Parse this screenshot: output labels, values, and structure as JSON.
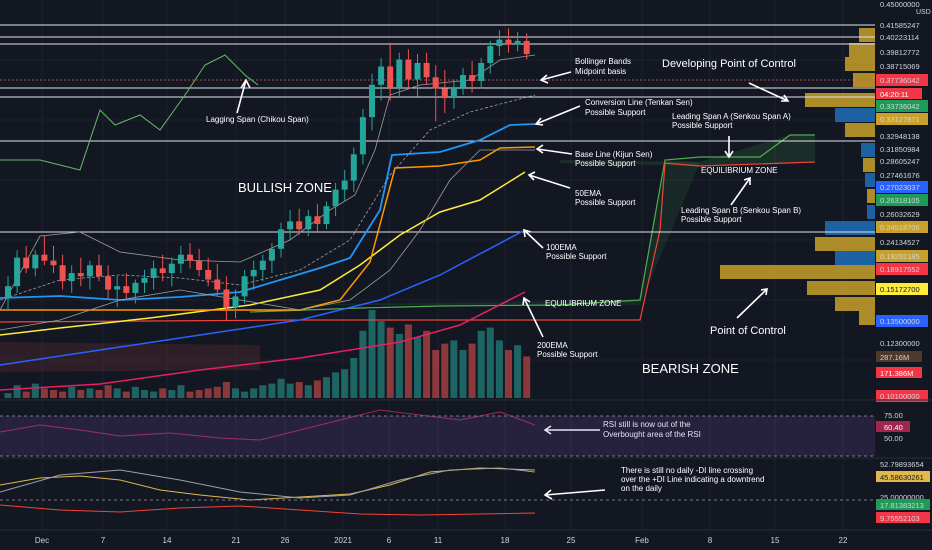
{
  "chart_data": {
    "type": "candlestick",
    "currency": "USD",
    "price_axis": {
      "scale": "log",
      "range": [
        0.098,
        0.46
      ],
      "ticks": [
        "0.45000000",
        "0.41585247",
        "0.40223114",
        "0.39812772",
        "0.38715069",
        "0.37736042",
        "0.35000000",
        "0.33736042",
        "0.33127871",
        "0.32948138",
        "0.31850984",
        "0.28605247",
        "0.27461676",
        "0.27023037",
        "0.26318105",
        "0.26032629",
        "0.24518706",
        "0.24134527",
        "0.19292185",
        "0.18917552",
        "0.15172700",
        "0.13500000",
        "0.12300000",
        "0.10100000"
      ]
    },
    "current_price_countdown": "04:20:11",
    "volume_labels": [
      "287.16M",
      "171.386M"
    ],
    "x_axis_labels": [
      "Dec",
      "7",
      "14",
      "21",
      "26",
      "2021",
      "6",
      "11",
      "18",
      "25",
      "Feb",
      "8",
      "15",
      "22"
    ],
    "candles": [
      {
        "o": 0.145,
        "h": 0.158,
        "l": 0.138,
        "c": 0.152
      },
      {
        "o": 0.152,
        "h": 0.175,
        "l": 0.148,
        "c": 0.17
      },
      {
        "o": 0.17,
        "h": 0.178,
        "l": 0.16,
        "c": 0.163
      },
      {
        "o": 0.163,
        "h": 0.175,
        "l": 0.158,
        "c": 0.172
      },
      {
        "o": 0.172,
        "h": 0.185,
        "l": 0.165,
        "c": 0.168
      },
      {
        "o": 0.168,
        "h": 0.178,
        "l": 0.16,
        "c": 0.165
      },
      {
        "o": 0.165,
        "h": 0.172,
        "l": 0.15,
        "c": 0.155
      },
      {
        "o": 0.155,
        "h": 0.165,
        "l": 0.148,
        "c": 0.16
      },
      {
        "o": 0.16,
        "h": 0.17,
        "l": 0.152,
        "c": 0.158
      },
      {
        "o": 0.158,
        "h": 0.168,
        "l": 0.15,
        "c": 0.165
      },
      {
        "o": 0.165,
        "h": 0.172,
        "l": 0.155,
        "c": 0.158
      },
      {
        "o": 0.158,
        "h": 0.165,
        "l": 0.145,
        "c": 0.15
      },
      {
        "o": 0.15,
        "h": 0.158,
        "l": 0.14,
        "c": 0.152
      },
      {
        "o": 0.152,
        "h": 0.16,
        "l": 0.145,
        "c": 0.148
      },
      {
        "o": 0.148,
        "h": 0.156,
        "l": 0.142,
        "c": 0.154
      },
      {
        "o": 0.154,
        "h": 0.162,
        "l": 0.148,
        "c": 0.157
      },
      {
        "o": 0.157,
        "h": 0.168,
        "l": 0.15,
        "c": 0.163
      },
      {
        "o": 0.163,
        "h": 0.172,
        "l": 0.155,
        "c": 0.16
      },
      {
        "o": 0.16,
        "h": 0.17,
        "l": 0.152,
        "c": 0.166
      },
      {
        "o": 0.166,
        "h": 0.178,
        "l": 0.16,
        "c": 0.172
      },
      {
        "o": 0.172,
        "h": 0.18,
        "l": 0.163,
        "c": 0.168
      },
      {
        "o": 0.168,
        "h": 0.176,
        "l": 0.158,
        "c": 0.162
      },
      {
        "o": 0.162,
        "h": 0.17,
        "l": 0.152,
        "c": 0.156
      },
      {
        "o": 0.156,
        "h": 0.166,
        "l": 0.146,
        "c": 0.15
      },
      {
        "o": 0.15,
        "h": 0.158,
        "l": 0.133,
        "c": 0.14
      },
      {
        "o": 0.14,
        "h": 0.15,
        "l": 0.134,
        "c": 0.146
      },
      {
        "o": 0.146,
        "h": 0.162,
        "l": 0.142,
        "c": 0.158
      },
      {
        "o": 0.158,
        "h": 0.168,
        "l": 0.15,
        "c": 0.162
      },
      {
        "o": 0.162,
        "h": 0.172,
        "l": 0.155,
        "c": 0.168
      },
      {
        "o": 0.168,
        "h": 0.18,
        "l": 0.16,
        "c": 0.176
      },
      {
        "o": 0.176,
        "h": 0.195,
        "l": 0.17,
        "c": 0.19
      },
      {
        "o": 0.19,
        "h": 0.205,
        "l": 0.182,
        "c": 0.196
      },
      {
        "o": 0.196,
        "h": 0.206,
        "l": 0.186,
        "c": 0.19
      },
      {
        "o": 0.19,
        "h": 0.205,
        "l": 0.185,
        "c": 0.2
      },
      {
        "o": 0.2,
        "h": 0.21,
        "l": 0.188,
        "c": 0.194
      },
      {
        "o": 0.194,
        "h": 0.212,
        "l": 0.19,
        "c": 0.208
      },
      {
        "o": 0.208,
        "h": 0.228,
        "l": 0.2,
        "c": 0.222
      },
      {
        "o": 0.222,
        "h": 0.24,
        "l": 0.212,
        "c": 0.23
      },
      {
        "o": 0.23,
        "h": 0.262,
        "l": 0.22,
        "c": 0.255
      },
      {
        "o": 0.255,
        "h": 0.305,
        "l": 0.245,
        "c": 0.295
      },
      {
        "o": 0.295,
        "h": 0.35,
        "l": 0.28,
        "c": 0.335
      },
      {
        "o": 0.335,
        "h": 0.372,
        "l": 0.315,
        "c": 0.36
      },
      {
        "o": 0.36,
        "h": 0.395,
        "l": 0.315,
        "c": 0.332
      },
      {
        "o": 0.332,
        "h": 0.38,
        "l": 0.318,
        "c": 0.37
      },
      {
        "o": 0.37,
        "h": 0.385,
        "l": 0.33,
        "c": 0.342
      },
      {
        "o": 0.342,
        "h": 0.378,
        "l": 0.32,
        "c": 0.365
      },
      {
        "o": 0.365,
        "h": 0.38,
        "l": 0.335,
        "c": 0.345
      },
      {
        "o": 0.345,
        "h": 0.362,
        "l": 0.29,
        "c": 0.33
      },
      {
        "o": 0.33,
        "h": 0.355,
        "l": 0.3,
        "c": 0.318
      },
      {
        "o": 0.318,
        "h": 0.342,
        "l": 0.305,
        "c": 0.332
      },
      {
        "o": 0.332,
        "h": 0.358,
        "l": 0.322,
        "c": 0.348
      },
      {
        "o": 0.348,
        "h": 0.368,
        "l": 0.325,
        "c": 0.34
      },
      {
        "o": 0.34,
        "h": 0.372,
        "l": 0.33,
        "c": 0.365
      },
      {
        "o": 0.365,
        "h": 0.398,
        "l": 0.35,
        "c": 0.39
      },
      {
        "o": 0.39,
        "h": 0.415,
        "l": 0.375,
        "c": 0.4
      },
      {
        "o": 0.4,
        "h": 0.418,
        "l": 0.38,
        "c": 0.392
      },
      {
        "o": 0.392,
        "h": 0.412,
        "l": 0.382,
        "c": 0.398
      },
      {
        "o": 0.398,
        "h": 0.41,
        "l": 0.37,
        "c": 0.378
      }
    ],
    "volumes": [
      3,
      8,
      4,
      9,
      6,
      5,
      4,
      7,
      5,
      6,
      5,
      8,
      6,
      4,
      7,
      5,
      4,
      6,
      5,
      8,
      4,
      5,
      6,
      7,
      10,
      6,
      4,
      6,
      8,
      9,
      12,
      9,
      10,
      8,
      11,
      13,
      16,
      18,
      25,
      42,
      55,
      48,
      44,
      40,
      46,
      38,
      42,
      30,
      34,
      36,
      30,
      34,
      42,
      44,
      36,
      30,
      33,
      26
    ],
    "indicators": {
      "bollinger_basis": "Bollinger Bands Midpoint basis",
      "tenkan": "Conversion Line (Tenkan Sen) Possible Support",
      "kijun": "Base Line (Kijun Sen) Possible Support",
      "ema50": "50EMA Possible Support",
      "ema100": "100EMA Possible Support",
      "ema200": "200EMA Possible Support",
      "senkou_a": "Leading Span A (Senkou Span A) Possible Support",
      "senkou_b": "Leading Span B (Senkou Span B) Possible Support",
      "chikou": "Lagging Span (Chikou Span)"
    },
    "volume_profile_poc": 0.1517,
    "rsi": {
      "value": "60.40",
      "upper": "75.00",
      "lower": "50.00"
    },
    "dmi": {
      "labels": [
        "52.79893654",
        "45.58630261",
        "25.00000000",
        "17.81383213",
        "9.75552103"
      ]
    }
  },
  "annotations": {
    "bullish_zone": "BULLISH ZONE",
    "bearish_zone": "BEARISH ZONE",
    "equilibrium_zone_1": "EQUILIBRIUM ZONE",
    "equilibrium_zone_2": "EQUILIBRIUM ZONE",
    "developing_poc": "Developing Point of Control",
    "poc": "Point of Control",
    "bollinger_1": "Bollinger Bands",
    "bollinger_2": "Midpoint basis",
    "tenkan_1": "Conversion Line (Tenkan Sen)",
    "tenkan_2": "Possible Support",
    "kijun_1": "Base Line (Kijun Sen)",
    "kijun_2": "Possible Support",
    "ema50_1": "50EMA",
    "ema50_2": "Possible Support",
    "ema100_1": "100EMA",
    "ema100_2": "Possible Support",
    "ema200_1": "200EMA",
    "ema200_2": "Possible Support",
    "senkou_a_1": "Leading Span A (Senkou Span A)",
    "senkou_a_2": "Possible Support",
    "senkou_b_1": "Leading Span B (Senkou Span B)",
    "senkou_b_2": "Possible Support",
    "chikou": "Lagging Span (Chikou Span)",
    "rsi_note_1": "RSI still is now out of the",
    "rsi_note_2": "Overbought area of the RSI",
    "dmi_note_1": "There is still no daily -DI line crossing",
    "dmi_note_2": "over the +DI Line indicating a downtrend",
    "dmi_note_3": "on the daily"
  },
  "colors": {
    "background": "#131722",
    "up": "#26a69a",
    "down": "#ef5350",
    "tenkan": "#2196f3",
    "kijun": "#ff9800",
    "ema50": "#ffeb3b",
    "ema100": "#2962ff",
    "ema200": "#e91e63",
    "senkou_a": "#4caf50",
    "senkou_b": "#f44336",
    "chikou": "#66bb6a",
    "bollinger": "#9e9e9e",
    "rsi": "#9c27b0"
  }
}
